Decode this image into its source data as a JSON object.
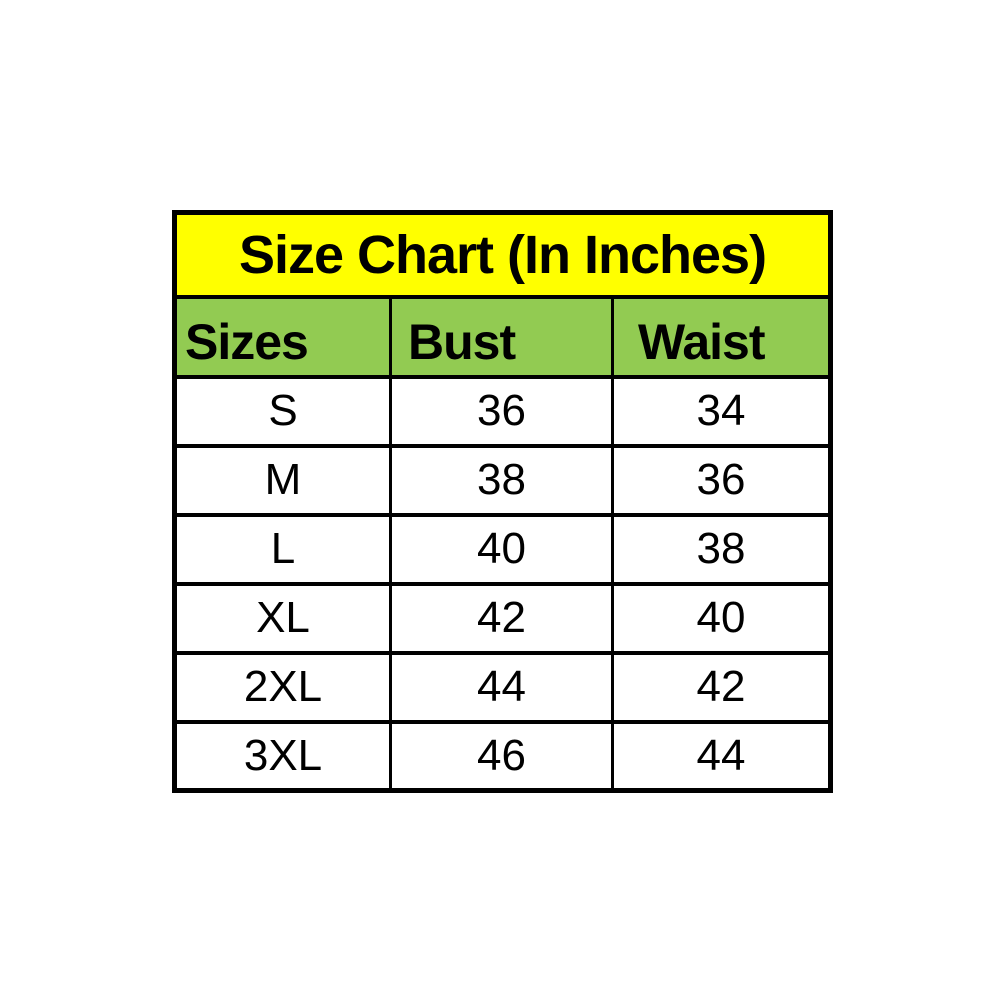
{
  "chart_data": {
    "type": "table",
    "title": "Size Chart (In Inches)",
    "columns": [
      "Sizes",
      "Bust",
      "Waist"
    ],
    "rows": [
      [
        "S",
        "36",
        "34"
      ],
      [
        "M",
        "38",
        "36"
      ],
      [
        "L",
        "40",
        "38"
      ],
      [
        "XL",
        "42",
        "40"
      ],
      [
        "2XL",
        "44",
        "42"
      ],
      [
        "3XL",
        "46",
        "44"
      ]
    ],
    "units": "inches",
    "layout": {
      "title_row_bg": "yellow",
      "header_row_bg": "green",
      "grid": "heavy black borders"
    }
  },
  "colors": {
    "title_background": "#FFFF00",
    "header_background": "#92CB52",
    "border": "#000000",
    "text": "#000000",
    "page_background": "#FFFFFF"
  }
}
